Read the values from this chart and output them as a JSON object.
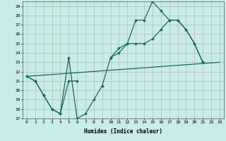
{
  "xlabel": "Humidex (Indice chaleur)",
  "background_color": "#c8ece8",
  "grid_color": "#b0b0b0",
  "line_color": "#1a6b5a",
  "xlim": [
    -0.5,
    23.5
  ],
  "ylim": [
    17,
    29.5
  ],
  "xticks": [
    0,
    1,
    2,
    3,
    4,
    5,
    6,
    7,
    8,
    9,
    10,
    11,
    12,
    13,
    14,
    15,
    16,
    17,
    18,
    19,
    20,
    21,
    22,
    23
  ],
  "yticks": [
    17,
    18,
    19,
    20,
    21,
    22,
    23,
    24,
    25,
    26,
    27,
    28,
    29
  ],
  "series": [
    {
      "x": [
        0,
        1,
        2,
        3,
        4,
        5,
        6,
        7,
        8,
        9,
        10,
        11,
        12,
        13,
        14,
        15,
        16,
        17,
        18,
        19,
        20,
        21
      ],
      "y": [
        21.5,
        21.0,
        19.5,
        18.0,
        17.5,
        23.5,
        17.0,
        17.5,
        19.0,
        20.5,
        23.5,
        24.0,
        25.0,
        27.5,
        27.5,
        29.5,
        28.5,
        27.5,
        27.5,
        26.5,
        25.0,
        23.0
      ]
    },
    {
      "segments": [
        {
          "x": [
            0,
            1,
            2,
            3,
            4,
            5,
            6
          ],
          "y": [
            21.5,
            21.0,
            19.5,
            18.0,
            17.5,
            21.0,
            21.0
          ]
        },
        {
          "x": [
            10,
            11,
            12,
            13,
            14,
            15,
            16,
            17,
            18,
            19,
            20,
            21
          ],
          "y": [
            23.5,
            24.5,
            25.0,
            25.0,
            25.0,
            25.5,
            26.5,
            27.5,
            27.5,
            26.5,
            25.0,
            23.0
          ]
        }
      ]
    },
    {
      "x": [
        0,
        23
      ],
      "y": [
        21.5,
        23.0
      ]
    }
  ]
}
